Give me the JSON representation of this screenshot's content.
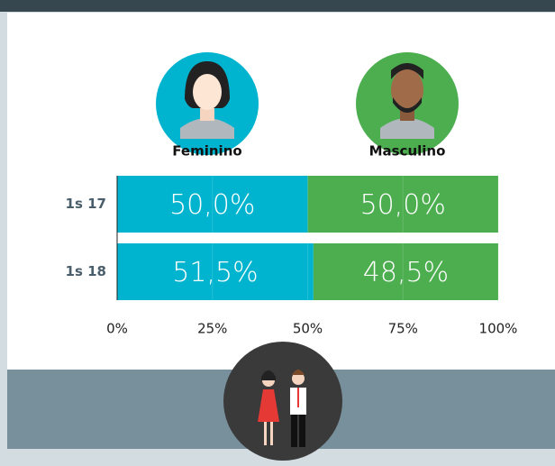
{
  "chart_data": {
    "type": "stacked-bar-horizontal",
    "categories": [
      "1s 17",
      "1s 18"
    ],
    "series": [
      {
        "name": "Feminino",
        "color": "#00b4cf",
        "values": [
          50.0,
          51.5
        ],
        "value_labels": [
          "50,0%",
          "51,5%"
        ]
      },
      {
        "name": "Masculino",
        "color": "#4cae4f",
        "values": [
          50.0,
          48.5
        ],
        "value_labels": [
          "50,0%",
          "48,5%"
        ]
      }
    ],
    "xlim": [
      0,
      100
    ],
    "xticks": [
      {
        "value": 0,
        "label": "0%"
      },
      {
        "value": 25,
        "label": "25%"
      },
      {
        "value": 50,
        "label": "50%"
      },
      {
        "value": 75,
        "label": "75%"
      },
      {
        "value": 100,
        "label": "100%"
      }
    ],
    "grid": true
  }
}
